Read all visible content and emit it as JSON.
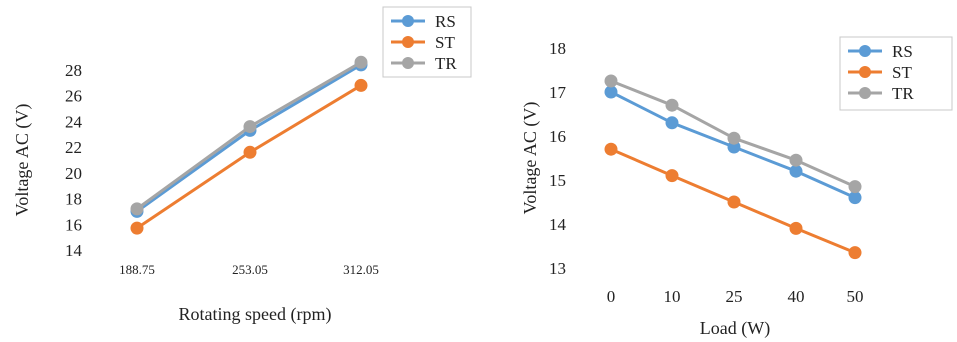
{
  "chart_data": [
    {
      "type": "line",
      "xlabel": "Rotating speed (rpm)",
      "ylabel": "Voltage AC (V)",
      "categories": [
        "188.75",
        "253.05",
        "312.05"
      ],
      "y_ticks": [
        14,
        16,
        18,
        20,
        22,
        24,
        26,
        28
      ],
      "ylim": [
        14,
        28
      ],
      "grid": false,
      "legend_position": "top-right",
      "series": [
        {
          "name": "RS",
          "color": "#5b9bd5",
          "values": [
            17.0,
            23.3,
            28.4
          ]
        },
        {
          "name": "ST",
          "color": "#ed7d31",
          "values": [
            15.7,
            21.6,
            26.8
          ]
        },
        {
          "name": "TR",
          "color": "#a5a5a5",
          "values": [
            17.2,
            23.6,
            28.6
          ]
        }
      ]
    },
    {
      "type": "line",
      "xlabel": "Load (W)",
      "ylabel": "Voltage AC (V)",
      "categories": [
        "0",
        "10",
        "25",
        "40",
        "50"
      ],
      "y_ticks": [
        13,
        14,
        15,
        16,
        17,
        18
      ],
      "ylim": [
        13,
        18
      ],
      "grid": false,
      "legend_position": "top-right",
      "series": [
        {
          "name": "RS",
          "color": "#5b9bd5",
          "values": [
            17.0,
            16.3,
            15.75,
            15.2,
            14.6
          ]
        },
        {
          "name": "ST",
          "color": "#ed7d31",
          "values": [
            15.7,
            15.1,
            14.5,
            13.9,
            13.35
          ]
        },
        {
          "name": "TR",
          "color": "#a5a5a5",
          "values": [
            17.25,
            16.7,
            15.95,
            15.45,
            14.85
          ]
        }
      ]
    }
  ]
}
